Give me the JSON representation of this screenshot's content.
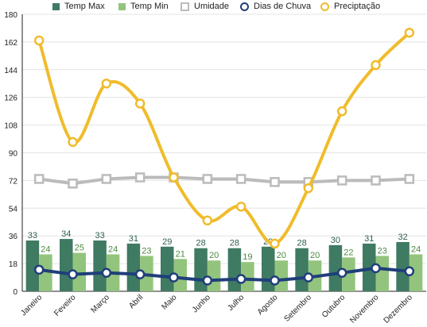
{
  "chart_data": {
    "type": "bar",
    "categories": [
      "Janeiro",
      "Feveiro",
      "Março",
      "Abril",
      "Maio",
      "Junho",
      "Julho",
      "Agosto",
      "Setembro",
      "Outubro",
      "Novembro",
      "Dezembro"
    ],
    "ylim": [
      0,
      180
    ],
    "y_ticks": [
      "0",
      "18",
      "36",
      "54",
      "72",
      "90",
      "108",
      "126",
      "144",
      "162",
      "180"
    ],
    "grid": true,
    "legend_position": "top",
    "series": [
      {
        "name": "Temp Max",
        "kind": "bar",
        "color": "#3f7a63",
        "label_color": "#2e5f4c",
        "values": [
          33,
          34,
          33,
          31,
          29,
          28,
          28,
          29,
          28,
          30,
          31,
          32
        ],
        "labels": [
          "33",
          "34",
          "33",
          "31",
          "29",
          "28",
          "28",
          "29",
          "28",
          "30",
          "31",
          "32"
        ]
      },
      {
        "name": "Temp Min",
        "kind": "bar",
        "color": "#93c47d",
        "label_color": "#4c8a40",
        "values": [
          24,
          25,
          24,
          23,
          21,
          20,
          19,
          20,
          20,
          22,
          23,
          24
        ],
        "labels": [
          "24",
          "25",
          "24",
          "23",
          "21",
          "20",
          "19",
          "20",
          "20",
          "22",
          "23",
          "24"
        ]
      },
      {
        "name": "Umidade",
        "kind": "line",
        "marker": "square",
        "color": "#bbbbbb",
        "values": [
          73,
          70,
          73,
          74,
          74,
          73,
          73,
          71,
          71,
          72,
          72,
          73
        ]
      },
      {
        "name": "Dias de Chuva",
        "kind": "line",
        "marker": "circle",
        "color": "#1f3f7a",
        "values": [
          14,
          11,
          12,
          11,
          9,
          7,
          8,
          7,
          9,
          12,
          15,
          13
        ]
      },
      {
        "name": "Preciptação",
        "kind": "line",
        "marker": "circle",
        "smooth": true,
        "color": "#f0bc2c",
        "values": [
          163,
          97,
          135,
          122,
          74,
          46,
          55,
          31,
          67,
          117,
          147,
          168
        ]
      }
    ]
  }
}
